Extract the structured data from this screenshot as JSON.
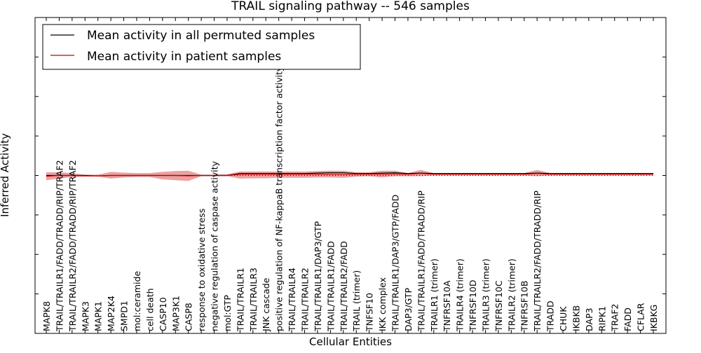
{
  "chart_data": {
    "type": "line",
    "title": "TRAIL signaling pathway -- 546 samples",
    "xlabel": "Cellular Entities",
    "ylabel": "Inferred Activity",
    "ylim": [
      -4,
      4
    ],
    "yticks": [
      -4,
      -3,
      -2,
      -1,
      0,
      1,
      2,
      3,
      4
    ],
    "categories": [
      "MAPK8",
      "TRAIL/TRAILR1/FADD/TRADD/RIP/TRAF2",
      "TRAIL/TRAILR2/FADD/TRADD/RIP/TRAF2",
      "MAPK3",
      "MAPK1",
      "MAP2K4",
      "SMPD1",
      "mol:ceramide",
      "cell death",
      "CASP10",
      "MAP3K1",
      "CASP8",
      "response to oxidative stress",
      "negative regulation of caspase activity",
      "mol:GTP",
      "TRAIL/TRAILR1",
      "TRAIL/TRAILR3",
      "JNK cascade",
      "positive regulation of NF-kappaB transcription factor activity",
      "TRAIL/TRAILR4",
      "TRAIL/TRAILR2",
      "TRAIL/TRAILR1/DAP3/GTP",
      "TRAIL/TRAILR1/FADD",
      "TRAIL/TRAILR2/FADD",
      "TRAIL (trimer)",
      "TNFSF10",
      "IKK complex",
      "TRAIL/TRAILR1/DAP3/GTP/FADD",
      "DAP3/GTP",
      "TRAIL/TRAILR1/FADD/TRADD/RIP",
      "TRAILR1 (trimer)",
      "TNFRSF10A",
      "TRAILR4 (trimer)",
      "TNFRSF10D",
      "TRAILR3 (trimer)",
      "TNFRSF10C",
      "TRAILR2 (trimer)",
      "TNFRSF10B",
      "TRAIL/TRAILR2/FADD/TRADD/RIP",
      "TRADD",
      "CHUK",
      "IKBKB",
      "DAP3",
      "RIPK1",
      "TRAF2",
      "FADD",
      "CFLAR",
      "IKBKG"
    ],
    "series": [
      {
        "name": "Mean activity in all permuted samples",
        "color": "#000000",
        "values": [
          0.0,
          0.0,
          0.0,
          0.0,
          -0.01,
          0.0,
          0.0,
          0.0,
          0.0,
          0.0,
          0.0,
          0.0,
          0.0,
          0.0,
          0.0,
          0.05,
          0.05,
          0.05,
          0.05,
          0.05,
          0.05,
          0.06,
          0.07,
          0.07,
          0.05,
          0.05,
          0.06,
          0.07,
          0.05,
          0.06,
          0.05,
          0.05,
          0.05,
          0.05,
          0.05,
          0.05,
          0.05,
          0.05,
          0.06,
          0.05,
          0.05,
          0.05,
          0.05,
          0.05,
          0.05,
          0.05,
          0.05,
          0.05
        ]
      },
      {
        "name": "Mean activity in patient samples",
        "color": "#cc0000",
        "band_color": "#e88080",
        "values": [
          -0.02,
          0.0,
          0.0,
          -0.01,
          -0.01,
          0.0,
          0.0,
          0.0,
          0.0,
          0.0,
          0.0,
          -0.01,
          0.0,
          0.0,
          0.0,
          0.03,
          0.03,
          0.03,
          0.03,
          0.03,
          0.03,
          0.03,
          0.03,
          0.03,
          0.03,
          0.03,
          0.03,
          0.04,
          0.03,
          0.05,
          0.03,
          0.03,
          0.03,
          0.03,
          0.03,
          0.03,
          0.03,
          0.03,
          0.05,
          0.03,
          0.03,
          0.03,
          0.03,
          0.03,
          0.03,
          0.03,
          0.03,
          0.03
        ],
        "lower": [
          -0.12,
          -0.08,
          -0.04,
          -0.03,
          -0.03,
          -0.08,
          -0.05,
          -0.04,
          -0.04,
          -0.1,
          -0.12,
          -0.14,
          -0.02,
          -0.02,
          -0.02,
          -0.08,
          -0.07,
          -0.07,
          -0.06,
          -0.06,
          -0.06,
          -0.05,
          -0.05,
          -0.06,
          -0.03,
          -0.02,
          -0.05,
          -0.02,
          -0.02,
          -0.02,
          0.0,
          0.0,
          0.0,
          0.0,
          0.0,
          0.0,
          0.0,
          0.0,
          -0.02,
          0.0,
          0.0,
          0.0,
          0.0,
          0.0,
          0.0,
          0.0,
          0.0,
          0.0
        ],
        "upper": [
          0.08,
          0.08,
          0.06,
          0.02,
          0.02,
          0.09,
          0.07,
          0.06,
          0.06,
          0.09,
          0.11,
          0.12,
          0.02,
          0.02,
          0.03,
          0.1,
          0.1,
          0.1,
          0.1,
          0.1,
          0.1,
          0.11,
          0.12,
          0.12,
          0.08,
          0.08,
          0.12,
          0.12,
          0.06,
          0.14,
          0.06,
          0.06,
          0.06,
          0.06,
          0.06,
          0.06,
          0.06,
          0.06,
          0.14,
          0.06,
          0.06,
          0.06,
          0.06,
          0.06,
          0.06,
          0.06,
          0.06,
          0.06
        ]
      }
    ],
    "reference_line": {
      "style": "dotted",
      "color": "#000000",
      "value": 0
    },
    "legend": {
      "placement": "top-left"
    }
  }
}
